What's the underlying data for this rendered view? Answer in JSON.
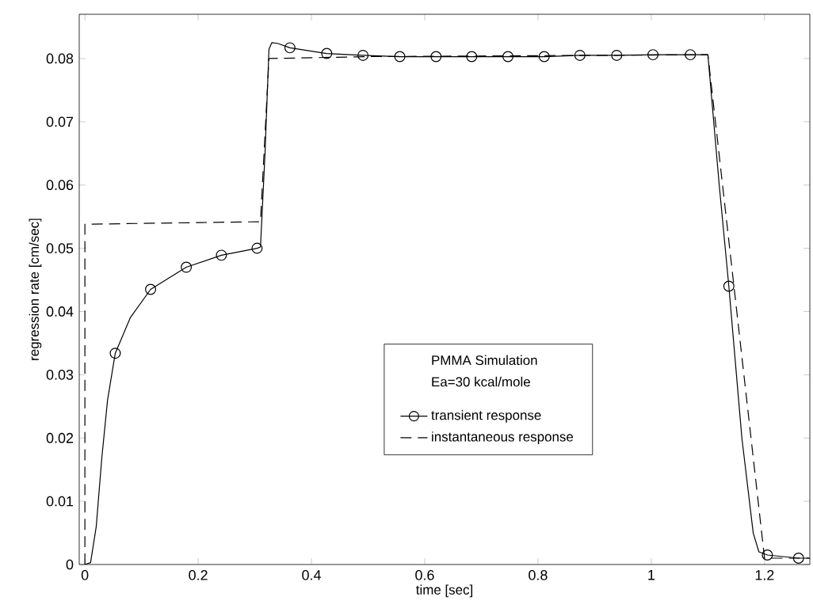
{
  "chart_data": {
    "type": "line",
    "xlabel": "time [sec]",
    "ylabel": "regression rate [cm/sec]",
    "annotations": [
      "PMMA  Simulation",
      "Ea=30 kcal/mole"
    ],
    "xlim": [
      -0.01,
      1.28
    ],
    "ylim": [
      0,
      0.087
    ],
    "xticks": [
      0,
      0.2,
      0.4,
      0.6,
      0.8,
      1,
      1.2
    ],
    "yticks": [
      0,
      0.01,
      0.02,
      0.03,
      0.04,
      0.05,
      0.06,
      0.07,
      0.08
    ],
    "legend": "center",
    "grid": false,
    "series": [
      {
        "name": "transient response",
        "color": "#000000",
        "line_style": "solid",
        "x": [
          0,
          0.01,
          0.02,
          0.03,
          0.04,
          0.0536,
          0.08,
          0.116,
          0.179,
          0.241,
          0.304,
          0.31,
          0.318,
          0.325,
          0.33,
          0.34,
          0.362,
          0.427,
          0.491,
          0.556,
          0.62,
          0.683,
          0.747,
          0.811,
          0.874,
          0.939,
          1.003,
          1.069,
          1.1,
          1.12,
          1.137,
          1.16,
          1.18,
          1.19,
          1.205,
          1.26,
          1.28
        ],
        "values": [
          0,
          0.0003,
          0.006,
          0.017,
          0.026,
          0.0334,
          0.039,
          0.0435,
          0.047,
          0.0489,
          0.05,
          0.0502,
          0.065,
          0.0815,
          0.0825,
          0.0824,
          0.0817,
          0.0808,
          0.0805,
          0.0803,
          0.0803,
          0.0803,
          0.0803,
          0.0803,
          0.0805,
          0.0805,
          0.0806,
          0.0806,
          0.0806,
          0.06,
          0.044,
          0.02,
          0.005,
          0.002,
          0.0015,
          0.001,
          0.001
        ]
      },
      {
        "type": "scatter",
        "marker": "circle",
        "color": "#000000",
        "x": [
          0.0536,
          0.116,
          0.179,
          0.241,
          0.304,
          0.362,
          0.427,
          0.491,
          0.556,
          0.62,
          0.683,
          0.747,
          0.811,
          0.874,
          0.939,
          1.003,
          1.069,
          1.137,
          1.205,
          1.26
        ],
        "values": [
          0.0334,
          0.0435,
          0.047,
          0.0489,
          0.05,
          0.0817,
          0.0808,
          0.0805,
          0.0803,
          0.0803,
          0.0803,
          0.0803,
          0.0803,
          0.0805,
          0.0805,
          0.0806,
          0.0806,
          0.044,
          0.0015,
          0.001
        ]
      },
      {
        "name": "instantaneous response",
        "color": "#000000",
        "line_style": "dashed",
        "x": [
          0,
          0,
          0.31,
          0.31,
          0.325,
          0.5,
          1.1,
          1.2,
          1.28
        ],
        "values": [
          0,
          0.0538,
          0.0542,
          0.0542,
          0.08,
          0.0803,
          0.0806,
          0.001,
          0.001
        ]
      }
    ]
  }
}
